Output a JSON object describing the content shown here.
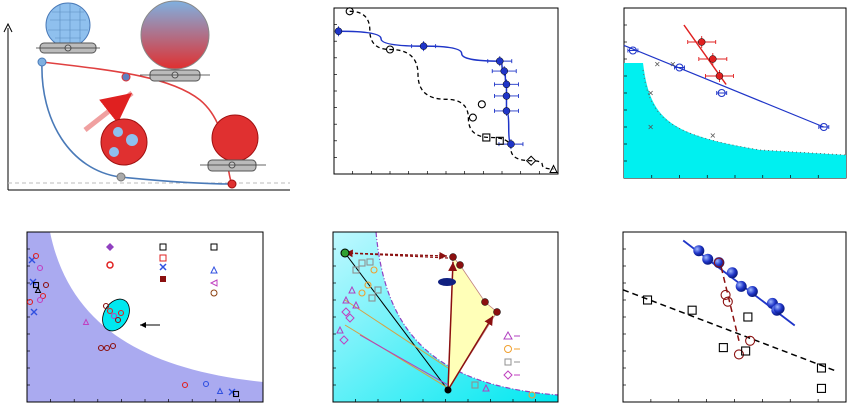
{
  "colors": {
    "blue": "#1f35c8",
    "red": "#e02020",
    "cyan": "#00f0f0",
    "lavender": "#aaaaf0",
    "cell_blue": "#7fb0e0",
    "cell_red": "#e03030",
    "black": "#000000",
    "yellow_fill": "#ffffb8",
    "dark_red": "#8b1010",
    "magenta": "#b040c0",
    "orange": "#f0a030",
    "gray": "#909090"
  },
  "chart_data": [
    {
      "type": "diagram",
      "panel": "top-left",
      "curves": [
        {
          "name": "",
          "color": "blue",
          "points": [
            [
              0.0,
              0.75
            ],
            [
              0.1,
              0.4
            ],
            [
              0.25,
              0.12
            ],
            [
              0.55,
              0.03
            ],
            [
              0.85,
              0.02
            ]
          ]
        },
        {
          "name": "",
          "color": "red",
          "points": [
            [
              0.0,
              0.75
            ],
            [
              0.3,
              0.68
            ],
            [
              0.6,
              0.55
            ],
            [
              0.75,
              0.35
            ],
            [
              0.85,
              0.02
            ]
          ]
        }
      ],
      "markers": [
        {
          "label": "",
          "color": "blue",
          "x": 0.0,
          "y": 0.75
        },
        {
          "label": "",
          "color": "gray",
          "x": 0.55,
          "y": 0.03
        },
        {
          "label": "",
          "color": "red",
          "x": 0.85,
          "y": 0.02
        },
        {
          "label": "",
          "color": "red",
          "x": 0.4,
          "y": 0.64
        }
      ]
    },
    {
      "type": "line",
      "panel": "top-middle",
      "series": [
        {
          "style": "solid",
          "marker": "filled-circle",
          "color": "blue",
          "points": [
            [
              0.02,
              0.86
            ],
            [
              0.4,
              0.77
            ],
            [
              0.74,
              0.68
            ],
            [
              0.76,
              0.62
            ],
            [
              0.77,
              0.54
            ],
            [
              0.77,
              0.47
            ],
            [
              0.77,
              0.38
            ],
            [
              0.79,
              0.18
            ]
          ]
        },
        {
          "style": "dashed",
          "marker": "open-circle",
          "color": "black",
          "points": [
            [
              0.07,
              0.98
            ],
            [
              0.25,
              0.75
            ],
            [
              0.62,
              0.34
            ],
            [
              0.66,
              0.42
            ]
          ]
        },
        {
          "style": "dashed",
          "marker": "open-square",
          "color": "black",
          "points": [
            [
              0.68,
              0.22
            ],
            [
              0.74,
              0.2
            ]
          ]
        },
        {
          "style": "dashed",
          "marker": "open-diamond",
          "color": "black",
          "points": [
            [
              0.88,
              0.08
            ]
          ]
        },
        {
          "style": "dashed",
          "marker": "open-triangle",
          "color": "black",
          "points": [
            [
              0.98,
              0.03
            ]
          ]
        }
      ]
    },
    {
      "type": "scatter",
      "panel": "top-right",
      "series": [
        {
          "color": "red",
          "marker": "filled-circle",
          "fit": "line",
          "points": [
            [
              0.35,
              0.8
            ],
            [
              0.4,
              0.7
            ],
            [
              0.43,
              0.6
            ]
          ]
        },
        {
          "color": "blue",
          "marker": "open-circle",
          "fit": "line",
          "points": [
            [
              0.04,
              0.75
            ],
            [
              0.25,
              0.65
            ],
            [
              0.44,
              0.5
            ],
            [
              0.9,
              0.3
            ]
          ]
        }
      ],
      "shaded_region": "bottom-left"
    },
    {
      "type": "scatter",
      "panel": "bottom-left",
      "legend_markers": [
        "filled-diamond",
        "open-cross-square",
        "open-square",
        "open-circle-red",
        "open-cross-square-red",
        "open-triangle",
        "x-blue",
        "open-left-triangle",
        "filled-square-red",
        "open-circle-black"
      ],
      "shaded_region": "below-curve",
      "annotation": "arrow-to-ellipse"
    },
    {
      "type": "scatter",
      "panel": "bottom-middle",
      "legend_markers": [
        "triangle",
        "circle",
        "square",
        "diamond"
      ],
      "shaded_region": "below-curve",
      "annotation": "polygon-arrows"
    },
    {
      "type": "scatter",
      "panel": "bottom-right",
      "series": [
        {
          "color": "blue",
          "marker": "filled-sphere",
          "fit": "solid",
          "points": [
            [
              0.15,
              0.88
            ],
            [
              0.22,
              0.78
            ],
            [
              0.3,
              0.7
            ],
            [
              0.45,
              0.6
            ],
            [
              0.5,
              0.55
            ],
            [
              0.62,
              0.48
            ],
            [
              0.65,
              0.42
            ]
          ]
        },
        {
          "color": "dark_red",
          "marker": "open-circle",
          "fit": "dashed",
          "points": [
            [
              0.18,
              0.68
            ],
            [
              0.28,
              0.56
            ],
            [
              0.3,
              0.52
            ],
            [
              0.33,
              0.4
            ],
            [
              0.38,
              0.28
            ]
          ]
        },
        {
          "color": "black",
          "marker": "open-square",
          "fit": "dashed",
          "points": [
            [
              0.05,
              0.63
            ],
            [
              0.28,
              0.52
            ],
            [
              0.42,
              0.38
            ],
            [
              0.5,
              0.28
            ],
            [
              0.52,
              0.22
            ],
            [
              0.82,
              0.13
            ],
            [
              0.84,
              0.1
            ]
          ]
        }
      ]
    }
  ]
}
